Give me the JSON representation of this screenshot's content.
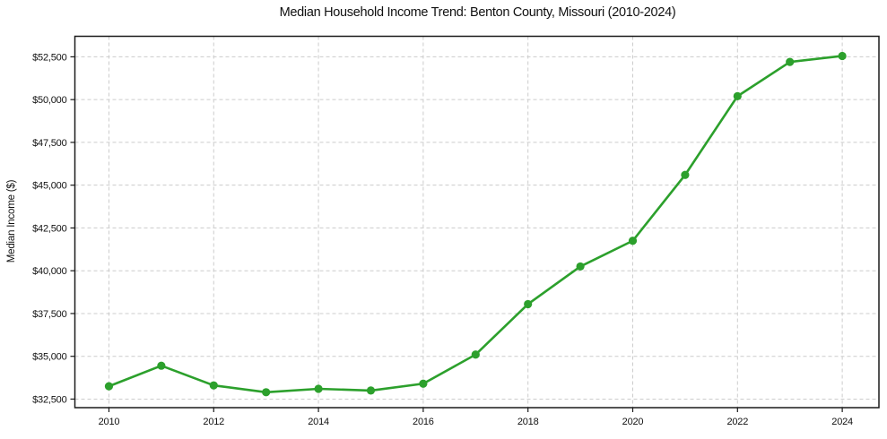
{
  "chart_data": {
    "type": "line",
    "title": "Median Household Income Trend: Benton County, Missouri (2010-2024)",
    "xlabel": "",
    "ylabel": "Median Income ($)",
    "x": [
      2010,
      2011,
      2012,
      2013,
      2014,
      2015,
      2016,
      2017,
      2018,
      2019,
      2020,
      2021,
      2022,
      2023,
      2024
    ],
    "series": [
      {
        "name": "Median household income",
        "values": [
          33250,
          34450,
          33300,
          32900,
          33100,
          33000,
          33400,
          35100,
          38050,
          40250,
          41750,
          45600,
          50200,
          52200,
          52550
        ]
      }
    ],
    "x_ticks": [
      {
        "value": 2010,
        "label": "2010"
      },
      {
        "value": 2012,
        "label": "2012"
      },
      {
        "value": 2014,
        "label": "2014"
      },
      {
        "value": 2016,
        "label": "2016"
      },
      {
        "value": 2018,
        "label": "2018"
      },
      {
        "value": 2020,
        "label": "2020"
      },
      {
        "value": 2022,
        "label": "2022"
      },
      {
        "value": 2024,
        "label": "2024"
      }
    ],
    "y_ticks": [
      {
        "value": 32500,
        "label": "$32,500"
      },
      {
        "value": 35000,
        "label": "$35,000"
      },
      {
        "value": 37500,
        "label": "$37,500"
      },
      {
        "value": 40000,
        "label": "$40,000"
      },
      {
        "value": 42500,
        "label": "$42,500"
      },
      {
        "value": 45000,
        "label": "$45,000"
      },
      {
        "value": 47500,
        "label": "$47,500"
      },
      {
        "value": 50000,
        "label": "$50,000"
      },
      {
        "value": 52500,
        "label": "$52,500"
      }
    ],
    "xlim": [
      2009.35,
      2024.7
    ],
    "ylim": [
      32000,
      53700
    ],
    "grid": true,
    "grid_style": "dashed",
    "legend": "none",
    "marker": "circle",
    "colors": {
      "line": "#2ca02c",
      "marker": "#2ca02c",
      "grid": "#cccccc",
      "axis": "#1a1a1a",
      "background": "#ffffff"
    }
  }
}
